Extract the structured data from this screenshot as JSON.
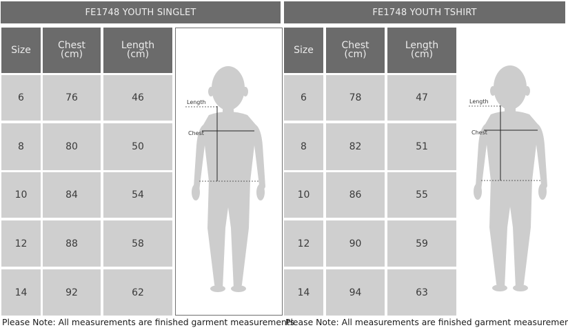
{
  "tables": [
    {
      "title": "FE1748 YOUTH SINGLET",
      "headers": {
        "size": "Size",
        "chest": "Chest (cm)",
        "length": "Length (cm)"
      },
      "rows": [
        {
          "size": "6",
          "chest": "76",
          "length": "46"
        },
        {
          "size": "8",
          "chest": "80",
          "length": "50"
        },
        {
          "size": "10",
          "chest": "84",
          "length": "54"
        },
        {
          "size": "12",
          "chest": "88",
          "length": "58"
        },
        {
          "size": "14",
          "chest": "92",
          "length": "62"
        }
      ],
      "figure_labels": {
        "length": "Length",
        "chest": "Chest"
      },
      "note": "Please Note: All measurements are finished garment measurements"
    },
    {
      "title": "FE1748 YOUTH TSHIRT",
      "headers": {
        "size": "Size",
        "chest": "Chest (cm)",
        "length": "Length (cm)"
      },
      "rows": [
        {
          "size": "6",
          "chest": "78",
          "length": "47"
        },
        {
          "size": "8",
          "chest": "82",
          "length": "51"
        },
        {
          "size": "10",
          "chest": "86",
          "length": "55"
        },
        {
          "size": "12",
          "chest": "90",
          "length": "59"
        },
        {
          "size": "14",
          "chest": "94",
          "length": "63"
        }
      ],
      "figure_labels": {
        "length": "Length",
        "chest": "Chest"
      },
      "note": "Please Note: All measurements are finished garment measurements"
    }
  ],
  "colors": {
    "header_bg": "#6b6b6b",
    "cell_bg": "#cfcfcf",
    "silhouette": "#cdcdcd"
  },
  "icons": {
    "figure": "child-silhouette-icon"
  }
}
